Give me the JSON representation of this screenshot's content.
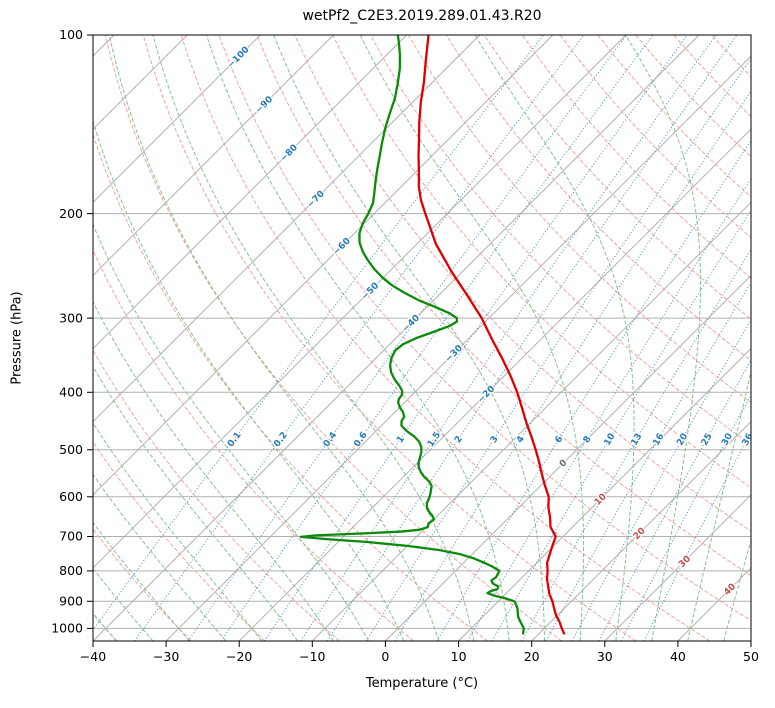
{
  "title": "wetPf2_C2E3.2019.289.01.43.R20",
  "axes": {
    "x_label": "Temperature (°C)",
    "y_label": "Pressure (hPa)",
    "x_ticks": [
      -40,
      -30,
      -20,
      -10,
      0,
      10,
      20,
      30,
      40,
      50
    ],
    "y_ticks": [
      100,
      200,
      300,
      400,
      500,
      600,
      700,
      800,
      900,
      1000
    ]
  },
  "chart_data": {
    "type": "line",
    "subtype": "skew-t-log-p",
    "title": "wetPf2_C2E3.2019.289.01.43.R20",
    "xlabel": "Temperature (°C)",
    "ylabel": "Pressure (hPa)",
    "xlim": [
      -40,
      50
    ],
    "ylim": [
      1050,
      100
    ],
    "skew_degrees": 45,
    "grid": true,
    "isotherm_step": 10,
    "dry_adiabats": {
      "start": -40,
      "end": 190,
      "step": 10
    },
    "moist_adiabats": {
      "start": -40,
      "end": 45,
      "step": 5
    },
    "mixing_ratio_lines": [
      0.1,
      0.2,
      0.4,
      0.6,
      1,
      1.5,
      2,
      3,
      4,
      6,
      8,
      10,
      13,
      16,
      20,
      25,
      30,
      36
    ],
    "mixing_label_pressure": 480,
    "isotherm_labels": [
      {
        "t": -100,
        "p": 109
      },
      {
        "t": -90,
        "p": 131
      },
      {
        "t": -80,
        "p": 158
      },
      {
        "t": -70,
        "p": 189
      },
      {
        "t": -60,
        "p": 227
      },
      {
        "t": -50,
        "p": 270
      },
      {
        "t": -40,
        "p": 306
      },
      {
        "t": -30,
        "p": 344
      },
      {
        "t": -20,
        "p": 403
      },
      {
        "t": 0,
        "p": 527
      },
      {
        "t": 10,
        "p": 606
      },
      {
        "t": 20,
        "p": 692
      },
      {
        "t": 30,
        "p": 771
      },
      {
        "t": 40,
        "p": 859
      }
    ],
    "series": [
      {
        "name": "temperature",
        "color": "#e00000",
        "pressure": [
          1020,
          1000,
          975,
          950,
          925,
          900,
          875,
          850,
          825,
          800,
          775,
          750,
          725,
          700,
          675,
          650,
          625,
          600,
          575,
          550,
          525,
          500,
          475,
          450,
          425,
          400,
          375,
          350,
          325,
          300,
          275,
          250,
          225,
          200,
          190,
          180,
          170,
          160,
          150,
          140,
          130,
          120,
          110,
          100
        ],
        "values": [
          23.4,
          22.4,
          21.2,
          19.8,
          18.6,
          17.4,
          16.0,
          14.8,
          13.6,
          12.6,
          11.4,
          10.6,
          9.8,
          9.0,
          7.0,
          5.6,
          4.0,
          2.6,
          0.6,
          -1.4,
          -3.4,
          -5.6,
          -8.0,
          -10.6,
          -13.2,
          -16.0,
          -19.2,
          -22.8,
          -26.8,
          -31.0,
          -36.0,
          -41.6,
          -47.4,
          -53.0,
          -55.4,
          -57.6,
          -59.6,
          -61.8,
          -64.0,
          -66.4,
          -68.8,
          -71.2,
          -74.0,
          -77.0
        ]
      },
      {
        "name": "dewpoint",
        "color": "#0c8a0c",
        "pressure": [
          1020,
          1000,
          985,
          970,
          955,
          940,
          925,
          910,
          900,
          890,
          880,
          872,
          865,
          858,
          850,
          840,
          830,
          820,
          810,
          800,
          788,
          775,
          762,
          750,
          738,
          726,
          715,
          707,
          701,
          697,
          692,
          687,
          682,
          675,
          665,
          655,
          645,
          635,
          625,
          615,
          605,
          595,
          585,
          575,
          565,
          555,
          545,
          535,
          525,
          515,
          505,
          495,
          485,
          475,
          465,
          455,
          447,
          440,
          432,
          424,
          416,
          410,
          404,
          398,
          390,
          380,
          370,
          360,
          350,
          340,
          332,
          324,
          316,
          309,
          304,
          300,
          294,
          287,
          280,
          272,
          264,
          256,
          248,
          240,
          232,
          224,
          216,
          208,
          200,
          192,
          184,
          176,
          168,
          160,
          152,
          144,
          136,
          128,
          121,
          114,
          108,
          103,
          100
        ],
        "values": [
          17.8,
          17.2,
          16.4,
          15.6,
          14.8,
          14.2,
          13.6,
          12.8,
          12.2,
          10.6,
          8.6,
          7.4,
          7.6,
          8.2,
          8.0,
          6.8,
          6.2,
          6.4,
          6.2,
          6.0,
          4.6,
          2.8,
          0.8,
          -1.6,
          -5.0,
          -10.0,
          -16.0,
          -22.0,
          -25.8,
          -24.0,
          -18.0,
          -13.0,
          -10.6,
          -9.8,
          -10.2,
          -10.0,
          -10.8,
          -11.8,
          -12.6,
          -13.2,
          -13.5,
          -13.9,
          -14.4,
          -14.9,
          -15.9,
          -17.2,
          -18.3,
          -19.2,
          -19.9,
          -20.4,
          -20.9,
          -21.6,
          -22.6,
          -24.0,
          -25.8,
          -27.3,
          -27.9,
          -28.1,
          -28.9,
          -30.0,
          -30.9,
          -31.3,
          -31.4,
          -31.9,
          -33.0,
          -34.6,
          -36.0,
          -37.1,
          -37.9,
          -38.4,
          -38.2,
          -37.2,
          -35.6,
          -34.3,
          -33.9,
          -34.4,
          -36.2,
          -39.0,
          -42.0,
          -45.0,
          -47.8,
          -50.2,
          -52.4,
          -54.4,
          -56.3,
          -58.0,
          -59.3,
          -60.2,
          -60.8,
          -61.6,
          -62.9,
          -64.3,
          -65.7,
          -67.1,
          -68.6,
          -70.1,
          -71.5,
          -72.9,
          -74.5,
          -76.3,
          -78.2,
          -80.0,
          -81.2
        ]
      }
    ],
    "colors": {
      "grid": "#b0b0b0",
      "dry_adiabat": "#f2a49e",
      "moist_adiabat": "#84c48e",
      "mixing_ratio": "#4f94c4",
      "mixing_label": "#2a7ab8",
      "isotherm_label_neg": "#2a7ab8",
      "isotherm_label_zero": "#6e6e6e",
      "isotherm_label_pos": "#c0504d",
      "axis": "#000000"
    }
  }
}
